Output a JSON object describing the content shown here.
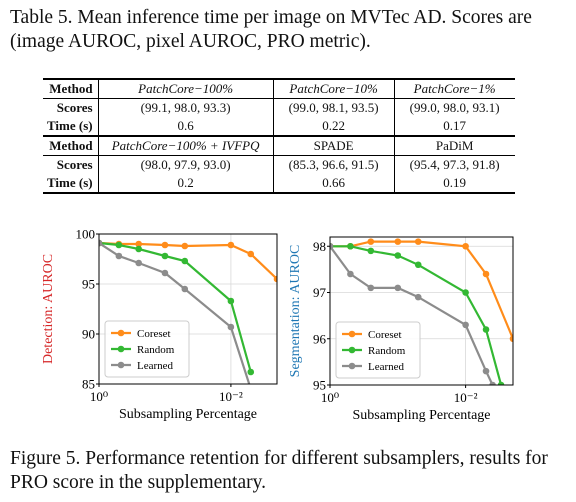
{
  "table_caption": "Table 5. Mean inference time per image on MVTec AD. Scores are (image AUROC, pixel AUROC, PRO metric).",
  "table": {
    "row_labels": {
      "method": "Method",
      "scores": "Scores",
      "time": "Time (s)"
    },
    "block1": [
      {
        "method": "PatchCore−100%",
        "scores": "(99.1, 98.0, 93.3)",
        "time": "0.6"
      },
      {
        "method": "PatchCore−10%",
        "scores": "(99.0, 98.1, 93.5)",
        "time": "0.22"
      },
      {
        "method": "PatchCore−1%",
        "scores": "(99.0, 98.0, 93.1)",
        "time": "0.17"
      }
    ],
    "block2": [
      {
        "method": "PatchCore−100% + IVFPQ",
        "scores": "(98.0, 97.9, 93.0)",
        "time": "0.2"
      },
      {
        "method": "SPADE",
        "scores": "(85.3, 96.6, 91.5)",
        "time": "0.66"
      },
      {
        "method": "PaDiM",
        "scores": "(95.4, 97.3, 91.8)",
        "time": "0.19"
      }
    ]
  },
  "figure_caption": "Figure 5. Performance retention for different subsamplers, results for PRO score in the supplementary.",
  "colors": {
    "coreset": "#ff8c1a",
    "random": "#33b833",
    "learned": "#8c8c8c",
    "ylabel": "#d62728",
    "ylabel2": "#1f77b4"
  },
  "chart_data": [
    {
      "type": "line",
      "title": "",
      "xlabel": "Subsampling Percentage",
      "ylabel": "Detection: AUROC",
      "xscale": "log",
      "xlim": [
        1,
        0.002
      ],
      "ylim": [
        85,
        100
      ],
      "yticks": [
        85,
        90,
        95,
        100
      ],
      "ytick_labels": [
        "85",
        "90",
        "95",
        "100"
      ],
      "xticks": [
        1,
        0.01
      ],
      "xtick_labels": [
        "10⁰",
        "10⁻²"
      ],
      "legend": "bottom-left",
      "series": [
        {
          "name": "Coreset",
          "color_key": "coreset",
          "x": [
            1,
            0.5,
            0.25,
            0.1,
            0.05,
            0.01,
            0.005,
            0.002
          ],
          "y": [
            99.1,
            99.0,
            99.0,
            98.9,
            98.8,
            98.9,
            98.0,
            95.5
          ]
        },
        {
          "name": "Random",
          "color_key": "random",
          "x": [
            1,
            0.5,
            0.25,
            0.1,
            0.05,
            0.01,
            0.005
          ],
          "y": [
            99.1,
            98.9,
            98.5,
            97.8,
            97.3,
            93.3,
            86.2
          ]
        },
        {
          "name": "Learned",
          "color_key": "learned",
          "x": [
            1,
            0.5,
            0.25,
            0.1,
            0.05,
            0.01,
            0.005
          ],
          "y": [
            99.1,
            97.8,
            97.1,
            96.1,
            94.5,
            90.7,
            84.5
          ]
        }
      ]
    },
    {
      "type": "line",
      "title": "",
      "xlabel": "Subsampling Percentage",
      "ylabel": "Segmentation: AUROC",
      "xscale": "log",
      "xlim": [
        1,
        0.002
      ],
      "ylim": [
        95,
        98.2
      ],
      "yticks": [
        95,
        96,
        97,
        98
      ],
      "ytick_labels": [
        "95",
        "96",
        "97",
        "98"
      ],
      "xticks": [
        1,
        0.01
      ],
      "xtick_labels": [
        "10⁰",
        "10⁻²"
      ],
      "legend": "bottom-left",
      "series": [
        {
          "name": "Coreset",
          "color_key": "coreset",
          "x": [
            1,
            0.5,
            0.25,
            0.1,
            0.05,
            0.01,
            0.005,
            0.002
          ],
          "y": [
            98.0,
            98.0,
            98.1,
            98.1,
            98.1,
            98.0,
            97.4,
            96.0
          ]
        },
        {
          "name": "Random",
          "color_key": "random",
          "x": [
            1,
            0.5,
            0.25,
            0.1,
            0.05,
            0.01,
            0.005,
            0.003
          ],
          "y": [
            98.0,
            98.0,
            97.9,
            97.8,
            97.6,
            97.0,
            96.2,
            95.0
          ]
        },
        {
          "name": "Learned",
          "color_key": "learned",
          "x": [
            1,
            0.5,
            0.25,
            0.1,
            0.05,
            0.01,
            0.005,
            0.004
          ],
          "y": [
            98.0,
            97.4,
            97.1,
            97.1,
            96.9,
            96.3,
            95.3,
            95.0
          ]
        }
      ]
    }
  ]
}
